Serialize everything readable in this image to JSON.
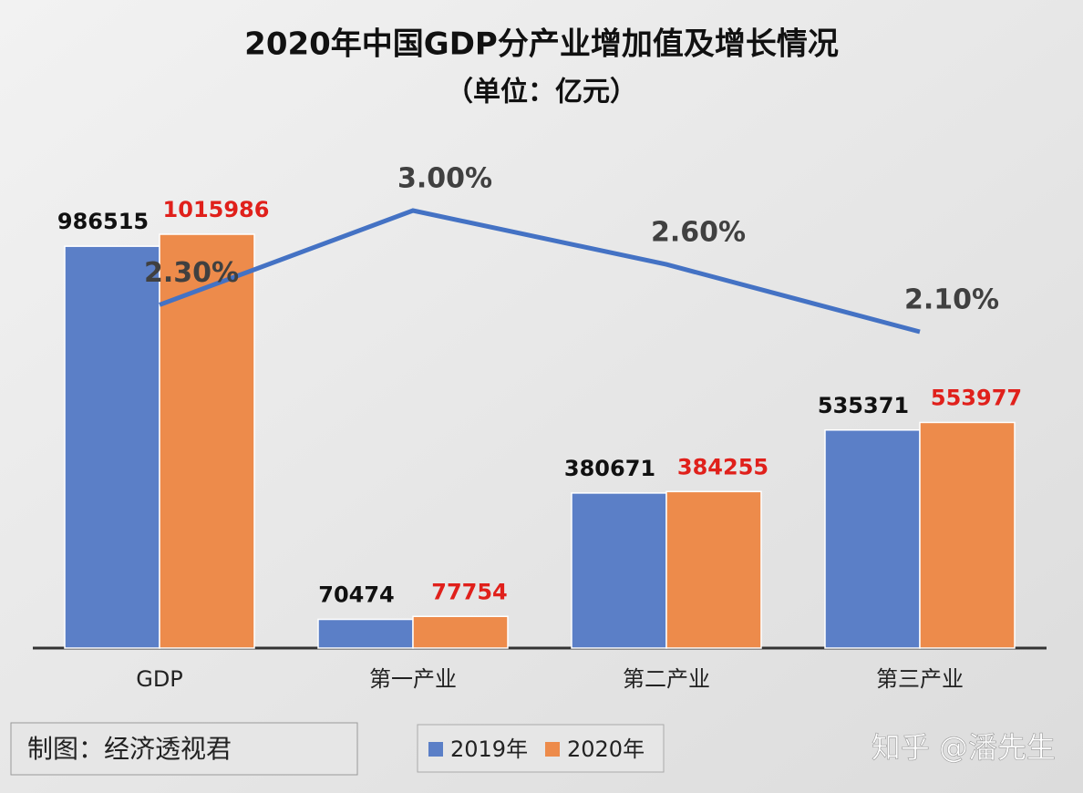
{
  "chart_data": {
    "type": "bar",
    "title": "2020年中国GDP分产业增加值及增长情况",
    "subtitle": "（单位：亿元）",
    "categories": [
      "GDP",
      "第一产业",
      "第二产业",
      "第三产业"
    ],
    "series": [
      {
        "name": "2019年",
        "color": "#5b7fc7",
        "label_color": "#111111",
        "values": [
          986515,
          70474,
          380671,
          535371
        ]
      },
      {
        "name": "2020年",
        "color": "#ed8b4b",
        "label_color": "#e0201b",
        "values": [
          1015986,
          77754,
          384255,
          553977
        ]
      }
    ],
    "line": {
      "type": "line",
      "color": "#4472c4",
      "values": [
        2.3,
        3,
        2.6,
        2.1
      ],
      "value_labels": [
        "2.30%",
        "3.00%",
        "2.60%",
        "2.10%"
      ]
    },
    "credit": "制图：经济透视君",
    "watermark": "知乎 @潘先生"
  }
}
